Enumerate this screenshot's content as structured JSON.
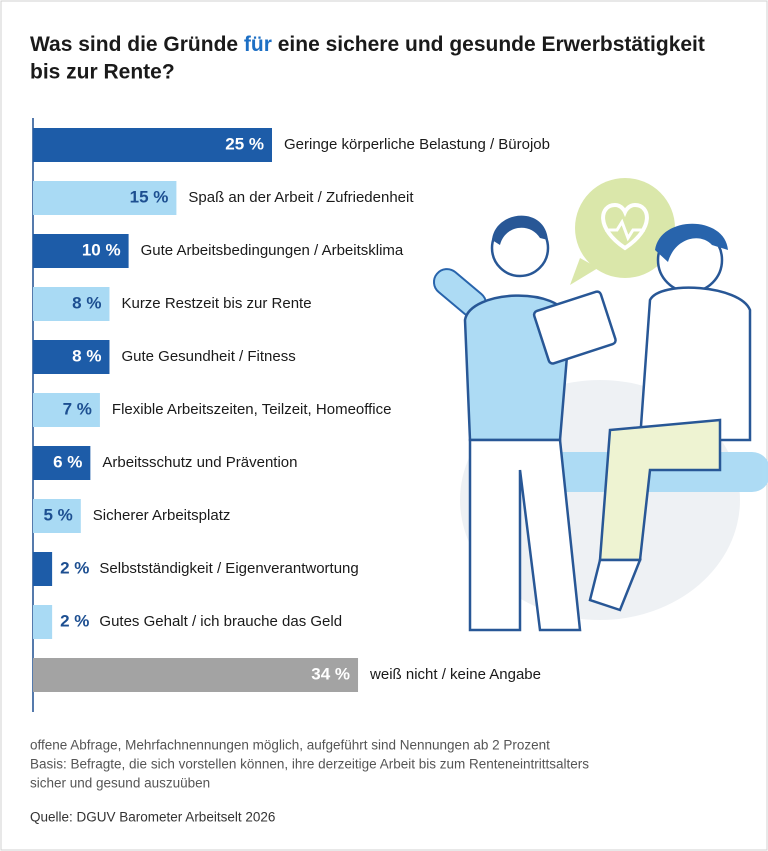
{
  "chart_data": {
    "type": "bar",
    "orientation": "horizontal",
    "title_parts": [
      "Was sind die Gründe ",
      "für",
      " eine sichere und gesunde Erwerbstätigkeit",
      "bis zur Rente?"
    ],
    "categories": [
      "Geringe körperliche Belastung / Bürojob",
      "Spaß an der Arbeit / Zufriedenheit",
      "Gute Arbeitsbedingungen / Arbeitsklima",
      "Kurze Restzeit bis zur Rente",
      "Gute Gesundheit / Fitness",
      "Flexible Arbeitszeiten, Teilzeit, Homeoffice",
      "Arbeitsschutz und Prävention",
      "Sicherer Arbeitsplatz",
      "Selbstständigkeit / Eigenverantwortung",
      "Gutes Gehalt / ich brauche das Geld",
      "weiß nicht / keine Angabe"
    ],
    "values": [
      25,
      15,
      10,
      8,
      8,
      7,
      6,
      5,
      2,
      2,
      34
    ],
    "value_labels": [
      "25 %",
      "15 %",
      "10 %",
      "8 %",
      "8 %",
      "7 %",
      "6 %",
      "5 %",
      "2 %",
      "2 %",
      "34 %"
    ],
    "colors": [
      "#1d5ca8",
      "#a9daf4",
      "#1d5ca8",
      "#a9daf4",
      "#1d5ca8",
      "#a9daf4",
      "#1d5ca8",
      "#a9daf4",
      "#1d5ca8",
      "#a9daf4",
      "#a3a3a3"
    ],
    "notes": [
      "offene Abfrage, Mehrfachnennungen möglich, aufgeführt sind Nennungen ab 2 Prozent",
      "Basis: Befragte, die sich vorstellen können, ihre derzeitige Arbeit bis zum Renteneintrittsalters",
      "sicher und gesund auszuüben"
    ],
    "source": "Quelle: DGUV Barometer Arbeitselt 2026"
  }
}
